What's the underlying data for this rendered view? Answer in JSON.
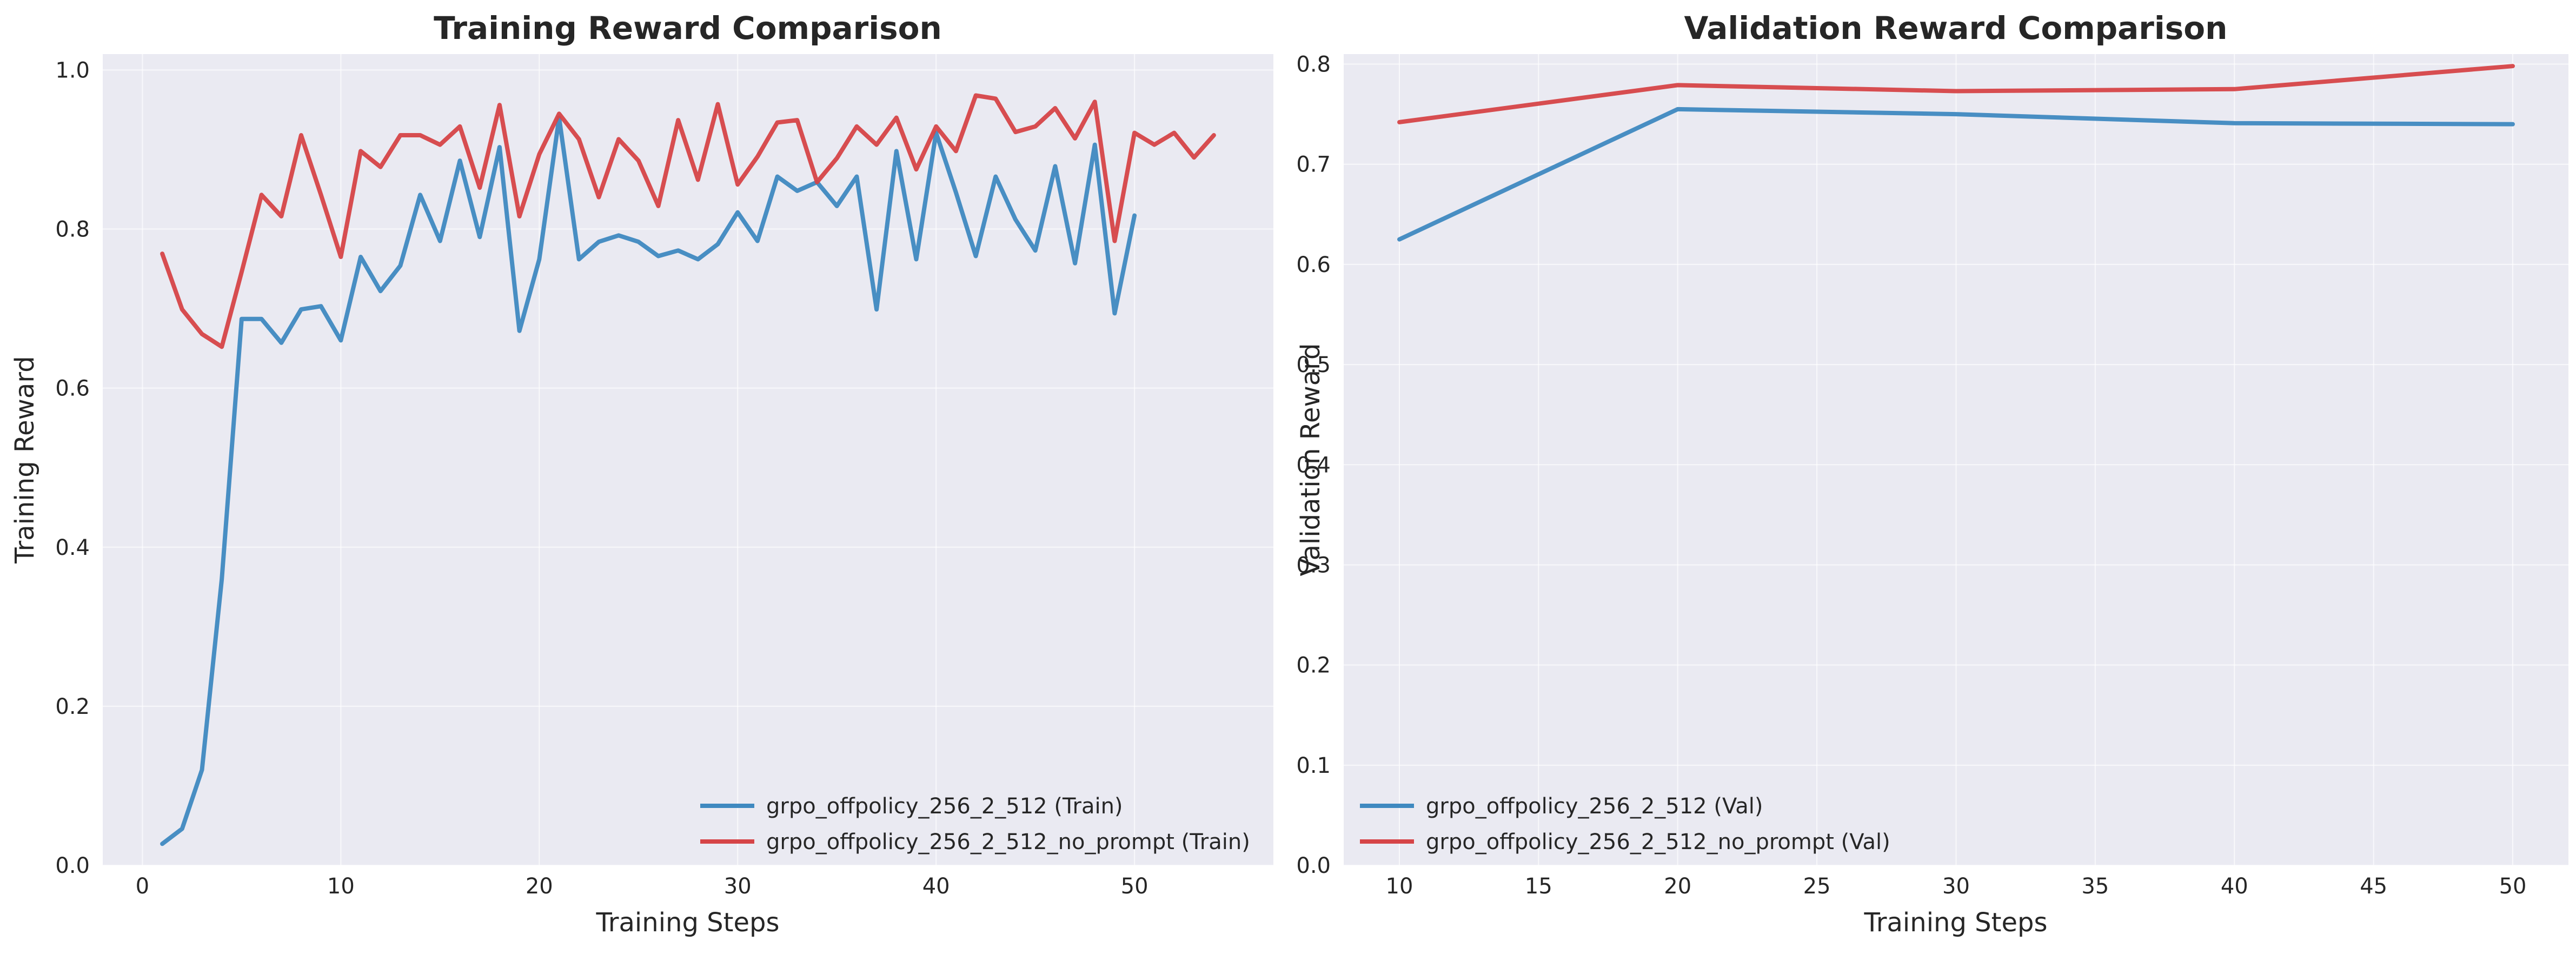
{
  "chart_data": [
    {
      "type": "line",
      "title": "Training Reward Comparison",
      "xlabel": "Training Steps",
      "ylabel": "Training Reward",
      "xlim": [
        -2,
        57
      ],
      "ylim": [
        0,
        1.02
      ],
      "xticks": [
        0,
        10,
        20,
        30,
        40,
        50
      ],
      "yticks": [
        0.0,
        0.2,
        0.4,
        0.6,
        0.8,
        1.0
      ],
      "ytick_labels": [
        "0.0",
        "0.2",
        "0.4",
        "0.6",
        "0.8",
        "1.0"
      ],
      "grid": true,
      "legend_position": "bottom-right",
      "series": [
        {
          "name": "grpo_offpolicy_256_2_512 (Train)",
          "color": "#3f89c0",
          "x": [
            1,
            2,
            3,
            4,
            5,
            6,
            7,
            8,
            9,
            10,
            11,
            12,
            13,
            14,
            15,
            16,
            17,
            18,
            19,
            20,
            21,
            22,
            23,
            24,
            25,
            26,
            27,
            28,
            29,
            30,
            31,
            32,
            33,
            34,
            35,
            36,
            37,
            38,
            39,
            40,
            41,
            42,
            43,
            44,
            45,
            46,
            47,
            48,
            49,
            50
          ],
          "values": [
            0.027,
            0.046,
            0.12,
            0.36,
            0.687,
            0.687,
            0.657,
            0.699,
            0.703,
            0.66,
            0.765,
            0.722,
            0.754,
            0.843,
            0.785,
            0.886,
            0.79,
            0.903,
            0.672,
            0.762,
            0.94,
            0.762,
            0.784,
            0.792,
            0.784,
            0.766,
            0.773,
            0.762,
            0.781,
            0.821,
            0.785,
            0.866,
            0.848,
            0.859,
            0.829,
            0.866,
            0.699,
            0.898,
            0.762,
            0.921,
            0.846,
            0.766,
            0.866,
            0.812,
            0.773,
            0.879,
            0.757,
            0.906,
            0.694,
            0.817
          ]
        },
        {
          "name": "grpo_offpolicy_256_2_512_no_prompt (Train)",
          "color": "#d64447",
          "x": [
            1,
            2,
            3,
            4,
            5,
            6,
            7,
            8,
            9,
            10,
            11,
            12,
            13,
            14,
            15,
            16,
            17,
            18,
            19,
            20,
            21,
            22,
            23,
            24,
            25,
            26,
            27,
            28,
            29,
            30,
            31,
            32,
            33,
            34,
            35,
            36,
            37,
            38,
            39,
            40,
            41,
            42,
            43,
            44,
            45,
            46,
            47,
            48,
            49,
            50,
            51,
            52,
            53,
            54
          ],
          "values": [
            0.769,
            0.699,
            0.668,
            0.652,
            0.746,
            0.843,
            0.816,
            0.918,
            0.843,
            0.765,
            0.898,
            0.878,
            0.918,
            0.918,
            0.906,
            0.929,
            0.852,
            0.956,
            0.816,
            0.894,
            0.945,
            0.913,
            0.84,
            0.913,
            0.886,
            0.829,
            0.937,
            0.862,
            0.957,
            0.856,
            0.891,
            0.934,
            0.937,
            0.859,
            0.889,
            0.929,
            0.906,
            0.94,
            0.875,
            0.929,
            0.898,
            0.968,
            0.964,
            0.922,
            0.929,
            0.952,
            0.914,
            0.96,
            0.785,
            0.921,
            0.906,
            0.921,
            0.89,
            0.918
          ]
        }
      ]
    },
    {
      "type": "line",
      "title": "Validation Reward Comparison",
      "xlabel": "Training Steps",
      "ylabel": "Validation Reward",
      "xlim": [
        8,
        52
      ],
      "ylim": [
        0,
        0.81
      ],
      "xticks": [
        10,
        15,
        20,
        25,
        30,
        35,
        40,
        45,
        50
      ],
      "yticks": [
        0.0,
        0.1,
        0.2,
        0.3,
        0.4,
        0.5,
        0.6,
        0.7,
        0.8
      ],
      "ytick_labels": [
        "0.0",
        "0.1",
        "0.2",
        "0.3",
        "0.4",
        "0.5",
        "0.6",
        "0.7",
        "0.8"
      ],
      "grid": true,
      "legend_position": "bottom-left",
      "series": [
        {
          "name": "grpo_offpolicy_256_2_512 (Val)",
          "color": "#3f89c0",
          "x": [
            10,
            20,
            30,
            40,
            50
          ],
          "values": [
            0.625,
            0.755,
            0.75,
            0.741,
            0.74
          ]
        },
        {
          "name": "grpo_offpolicy_256_2_512_no_prompt (Val)",
          "color": "#d64447",
          "x": [
            10,
            20,
            30,
            40,
            50
          ],
          "values": [
            0.742,
            0.779,
            0.773,
            0.775,
            0.798
          ]
        }
      ]
    }
  ]
}
